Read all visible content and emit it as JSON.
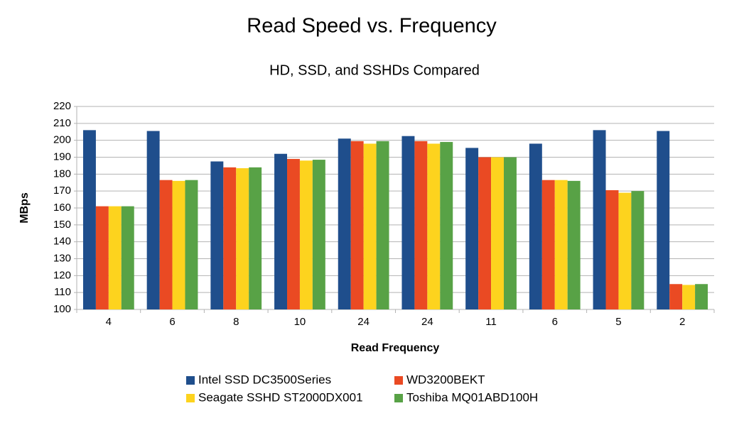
{
  "chart_data": {
    "type": "bar",
    "title": "Read Speed vs. Frequency",
    "subtitle": "HD, SSD, and SSHDs Compared",
    "x_label": "Read Frequency",
    "y_label": "MBps",
    "categories": [
      "4",
      "6",
      "8",
      "10",
      "24",
      "24",
      "11",
      "6",
      "5",
      "2"
    ],
    "series": [
      {
        "name": "Intel SSD DC3500Series",
        "color": "#1f4e8c",
        "values": [
          206,
          205.5,
          187.5,
          192,
          201,
          202.5,
          195.5,
          198,
          206,
          205.5
        ]
      },
      {
        "name": "WD3200BEKT",
        "color": "#ea4a23",
        "values": [
          161,
          176.5,
          184,
          189,
          199.5,
          199.5,
          190,
          176.5,
          170.5,
          115
        ]
      },
      {
        "name": "Seagate SSHD ST2000DX001",
        "color": "#fdd31e",
        "values": [
          161,
          176,
          183.5,
          188,
          198,
          198,
          190,
          176.5,
          169,
          114.5
        ]
      },
      {
        "name": "Toshiba MQ01ABD100H",
        "color": "#58a246",
        "values": [
          161,
          176.5,
          184,
          188.5,
          199.5,
          199,
          190,
          176,
          170,
          115
        ]
      }
    ],
    "ylim": [
      100,
      220
    ],
    "yticks": [
      100,
      110,
      120,
      130,
      140,
      150,
      160,
      170,
      180,
      190,
      200,
      210,
      220
    ],
    "grid": true
  }
}
